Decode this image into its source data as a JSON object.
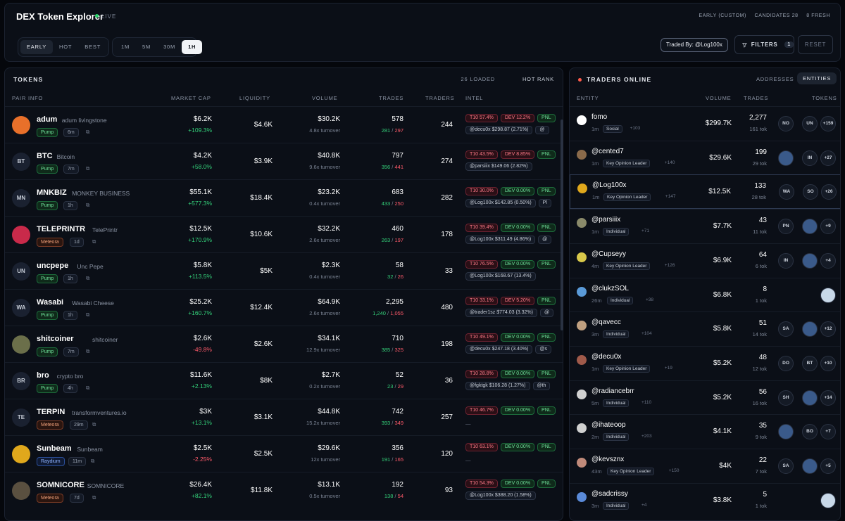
{
  "header": {
    "title": "DEX Token Explorer",
    "live": "LIVE",
    "mode": "EARLY (CUSTOM)",
    "candidates": "CANDIDATES 28",
    "fresh": "8 FRESH"
  },
  "modes": [
    "EARLY",
    "HOT",
    "BEST"
  ],
  "timeframes": [
    "1M",
    "5M",
    "30M",
    "1H"
  ],
  "traded_by": "Traded By: @Log100x",
  "filters": {
    "label": "FILTERS",
    "count": "1",
    "reset": "RESET"
  },
  "tokens": {
    "title": "TOKENS",
    "loaded": "26 LOADED",
    "rank": "HOT RANK",
    "columns": [
      "PAIR INFO",
      "MARKET CAP",
      "LIQUIDITY",
      "VOLUME",
      "TRADES",
      "TRADERS",
      "INTEL"
    ],
    "rows": [
      {
        "sym": "adum",
        "name": "adum livingstone",
        "av": "",
        "dex": "Pump",
        "age": "6m",
        "mcap": "$6.2K",
        "chg": "+109.3%",
        "liq": "$4.6K",
        "vol": "$30.2K",
        "turn": "4.8x turnover",
        "trades": "578",
        "buys": "281",
        "sells": "297",
        "traders": "244",
        "t10": "T10 57.4%",
        "dev": "DEV 12.2%",
        "devcolor": "red",
        "tag": "@decu0x $298.87 (2.71%)",
        "tag2": "@"
      },
      {
        "sym": "BTC",
        "name": "Bitcoin",
        "av": "BT",
        "dex": "Pump",
        "age": "7m",
        "mcap": "$4.2K",
        "chg": "+58.0%",
        "liq": "$3.9K",
        "vol": "$40.8K",
        "turn": "9.6x turnover",
        "trades": "797",
        "buys": "356",
        "sells": "441",
        "traders": "274",
        "t10": "T10 43.5%",
        "dev": "DEV 8.85%",
        "devcolor": "red",
        "tag": "@parsiiix $149.06 (2.82%)",
        "tag2": ""
      },
      {
        "sym": "MNKBIZ",
        "name": "MONKEY BUSINESS",
        "av": "MN",
        "dex": "Pump",
        "age": "1h",
        "mcap": "$55.1K",
        "chg": "+577.3%",
        "liq": "$18.4K",
        "vol": "$23.2K",
        "turn": "0.4x turnover",
        "trades": "683",
        "buys": "433",
        "sells": "250",
        "traders": "282",
        "t10": "T10 30.0%",
        "dev": "DEV 0.00%",
        "devcolor": "green",
        "tag": "@Log100x $142.85 (0.50%)",
        "tag2": "Pl"
      },
      {
        "sym": "TELEPRINTR",
        "name": "TelePrintr",
        "av": "",
        "dex": "Meteora",
        "age": "1d",
        "mcap": "$12.5K",
        "chg": "+170.9%",
        "liq": "$10.6K",
        "vol": "$32.2K",
        "turn": "2.6x turnover",
        "trades": "460",
        "buys": "263",
        "sells": "197",
        "traders": "178",
        "t10": "T10 39.4%",
        "dev": "DEV 0.00%",
        "devcolor": "green",
        "tag": "@Log100x $311.49 (4.86%)",
        "tag2": "@"
      },
      {
        "sym": "uncpepe",
        "name": "Unc Pepe",
        "av": "UN",
        "dex": "Pump",
        "age": "1h",
        "mcap": "$5.8K",
        "chg": "+113.5%",
        "liq": "$5K",
        "vol": "$2.3K",
        "turn": "0.4x turnover",
        "trades": "58",
        "buys": "32",
        "sells": "26",
        "traders": "33",
        "t10": "T10 76.5%",
        "dev": "DEV 0.00%",
        "devcolor": "green",
        "tag": "@Log100x $168.67 (13.4%)",
        "tag2": ""
      },
      {
        "sym": "Wasabi",
        "name": "Wasabi Cheese",
        "av": "WA",
        "dex": "Pump",
        "age": "1h",
        "mcap": "$25.2K",
        "chg": "+160.7%",
        "liq": "$12.4K",
        "vol": "$64.9K",
        "turn": "2.6x turnover",
        "trades": "2,295",
        "buys": "1,240",
        "sells": "1,055",
        "traders": "480",
        "t10": "T10 33.1%",
        "dev": "DEV 5.20%",
        "devcolor": "red",
        "tag": "@trader1sz $774.03 (3.32%)",
        "tag2": "@"
      },
      {
        "sym": "shitcoiner",
        "name": "shitcoiner",
        "av": "",
        "dex": "Pump",
        "age": "7m",
        "mcap": "$2.6K",
        "chg": "-49.8%",
        "liq": "$2.6K",
        "vol": "$34.1K",
        "turn": "12.9x turnover",
        "trades": "710",
        "buys": "385",
        "sells": "325",
        "traders": "198",
        "t10": "T10 49.1%",
        "dev": "DEV 0.00%",
        "devcolor": "green",
        "tag": "@decu0x $247.18 (3.40%)",
        "tag2": "@s"
      },
      {
        "sym": "bro",
        "name": "crypto bro",
        "av": "BR",
        "dex": "Pump",
        "age": "4h",
        "mcap": "$11.6K",
        "chg": "+2.13%",
        "liq": "$8K",
        "vol": "$2.7K",
        "turn": "0.2x turnover",
        "trades": "52",
        "buys": "23",
        "sells": "29",
        "traders": "36",
        "t10": "T10 28.8%",
        "dev": "DEV 0.00%",
        "devcolor": "green",
        "tag": "@fgktgk $106.28 (1.27%)",
        "tag2": "@th"
      },
      {
        "sym": "TERPIN",
        "name": "transformventures.io",
        "av": "TE",
        "dex": "Meteora",
        "age": "29m",
        "mcap": "$3K",
        "chg": "+13.1%",
        "liq": "$3.1K",
        "vol": "$44.8K",
        "turn": "15.2x turnover",
        "trades": "742",
        "buys": "393",
        "sells": "349",
        "traders": "257",
        "t10": "T10 46.7%",
        "dev": "DEV 0.00%",
        "devcolor": "green",
        "tag": "",
        "tag2": ""
      },
      {
        "sym": "Sunbeam",
        "name": "Sunbeam",
        "av": "",
        "dex": "Raydium",
        "age": "11m",
        "mcap": "$2.5K",
        "chg": "-2.25%",
        "liq": "$2.5K",
        "vol": "$29.6K",
        "turn": "12x turnover",
        "trades": "356",
        "buys": "191",
        "sells": "165",
        "traders": "120",
        "t10": "T10 63.1%",
        "dev": "DEV 0.00%",
        "devcolor": "green",
        "tag": "",
        "tag2": ""
      },
      {
        "sym": "SOMNICORE",
        "name": "SOMNICORE",
        "av": "",
        "dex": "Meteora",
        "age": "7d",
        "mcap": "$26.4K",
        "chg": "+82.1%",
        "liq": "$11.8K",
        "vol": "$13.1K",
        "turn": "0.5x turnover",
        "trades": "192",
        "buys": "138",
        "sells": "54",
        "traders": "93",
        "t10": "T10 54.3%",
        "dev": "DEV 0.00%",
        "devcolor": "green",
        "tag": "@Log100x $388.20 (1.58%)",
        "tag2": ""
      }
    ]
  },
  "traders": {
    "title": "TRADERS ONLINE",
    "tab1": "ADDRESSES",
    "tab2": "ENTITIES",
    "columns": [
      "ENTITY",
      "VOLUME",
      "TRADES",
      "TOKENS"
    ],
    "rows": [
      {
        "name": "fomo",
        "age": "1m",
        "type": "Social",
        "extra": "+103",
        "vol": "$299.7K",
        "trades": "2,277",
        "tok": "161 tok",
        "c1": "NO",
        "c2": "UN",
        "c3": "+159"
      },
      {
        "name": "@cented7",
        "age": "1m",
        "type": "Key Opinion Leader",
        "extra": "+140",
        "vol": "$29.6K",
        "trades": "199",
        "tok": "29 tok",
        "c1": "",
        "c2": "IN",
        "c3": "+27"
      },
      {
        "name": "@Log100x",
        "age": "1m",
        "type": "Key Opinion Leader",
        "extra": "+147",
        "vol": "$12.5K",
        "trades": "133",
        "tok": "28 tok",
        "c1": "WA",
        "c2": "SO",
        "c3": "+26"
      },
      {
        "name": "@parsiiix",
        "age": "1m",
        "type": "Individual",
        "extra": "+71",
        "vol": "$7.7K",
        "trades": "43",
        "tok": "11 tok",
        "c1": "PN",
        "c2": "",
        "c3": "+9"
      },
      {
        "name": "@Cupseyy",
        "age": "4m",
        "type": "Key Opinion Leader",
        "extra": "+126",
        "vol": "$6.9K",
        "trades": "64",
        "tok": "6 tok",
        "c1": "IN",
        "c2": "",
        "c3": "+4"
      },
      {
        "name": "@clukzSOL",
        "age": "26m",
        "type": "Individual",
        "extra": "+38",
        "vol": "$6.8K",
        "trades": "8",
        "tok": "1 tok",
        "c1": "",
        "c2": "",
        "c3": ""
      },
      {
        "name": "@qavecc",
        "age": "3m",
        "type": "Individual",
        "extra": "+104",
        "vol": "$5.8K",
        "trades": "51",
        "tok": "14 tok",
        "c1": "SA",
        "c2": "",
        "c3": "+12"
      },
      {
        "name": "@decu0x",
        "age": "1m",
        "type": "Key Opinion Leader",
        "extra": "+19",
        "vol": "$5.2K",
        "trades": "48",
        "tok": "12 tok",
        "c1": "DO",
        "c2": "BT",
        "c3": "+10"
      },
      {
        "name": "@radiancebrr",
        "age": "5m",
        "type": "Individual",
        "extra": "+110",
        "vol": "$5.2K",
        "trades": "56",
        "tok": "16 tok",
        "c1": "SH",
        "c2": "",
        "c3": "+14"
      },
      {
        "name": "@ihateoop",
        "age": "2m",
        "type": "Individual",
        "extra": "+203",
        "vol": "$4.1K",
        "trades": "35",
        "tok": "9 tok",
        "c1": "",
        "c2": "BO",
        "c3": "+7"
      },
      {
        "name": "@kevsznx",
        "age": "43m",
        "type": "Key Opinion Leader",
        "extra": "+150",
        "vol": "$4K",
        "trades": "22",
        "tok": "7 tok",
        "c1": "SA",
        "c2": "",
        "c3": "+5"
      },
      {
        "name": "@sadcrissy",
        "age": "3m",
        "type": "Individual",
        "extra": "+4",
        "vol": "$3.8K",
        "trades": "5",
        "tok": "1 tok",
        "c1": "",
        "c2": "",
        "c3": ""
      }
    ]
  }
}
